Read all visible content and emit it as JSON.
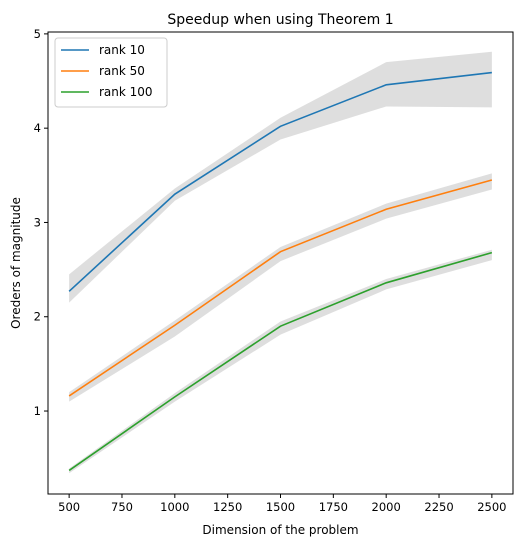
{
  "chart_data": {
    "type": "line",
    "title": "Speedup when using Theorem 1",
    "xlabel": "Dimension of the problem",
    "ylabel": "Oreders of magnitude",
    "xlim": [
      400,
      2600
    ],
    "ylim": [
      0.12,
      5.02
    ],
    "xticks": [
      500,
      750,
      1000,
      1250,
      1500,
      1750,
      2000,
      2250,
      2500
    ],
    "yticks": [
      1,
      2,
      3,
      4,
      5
    ],
    "grid": false,
    "legend_position": "top-left",
    "x": [
      500,
      1000,
      1500,
      2000,
      2500
    ],
    "series": [
      {
        "name": "rank 10",
        "color": "#1f77b4",
        "values": [
          2.27,
          3.3,
          4.02,
          4.46,
          4.59
        ],
        "lower": [
          2.15,
          3.23,
          3.88,
          4.23,
          4.22
        ],
        "upper": [
          2.45,
          3.36,
          4.11,
          4.7,
          4.81
        ]
      },
      {
        "name": "rank 50",
        "color": "#ff7f0e",
        "values": [
          1.16,
          1.91,
          2.69,
          3.14,
          3.45
        ],
        "lower": [
          1.1,
          1.79,
          2.59,
          3.04,
          3.35
        ],
        "upper": [
          1.2,
          1.96,
          2.74,
          3.2,
          3.52
        ]
      },
      {
        "name": "rank 100",
        "color": "#2ca02c",
        "values": [
          0.37,
          1.15,
          1.9,
          2.36,
          2.68
        ],
        "lower": [
          0.34,
          1.1,
          1.81,
          2.29,
          2.6
        ],
        "upper": [
          0.39,
          1.19,
          1.95,
          2.4,
          2.71
        ]
      }
    ],
    "band_color": "#c8c8c8"
  }
}
